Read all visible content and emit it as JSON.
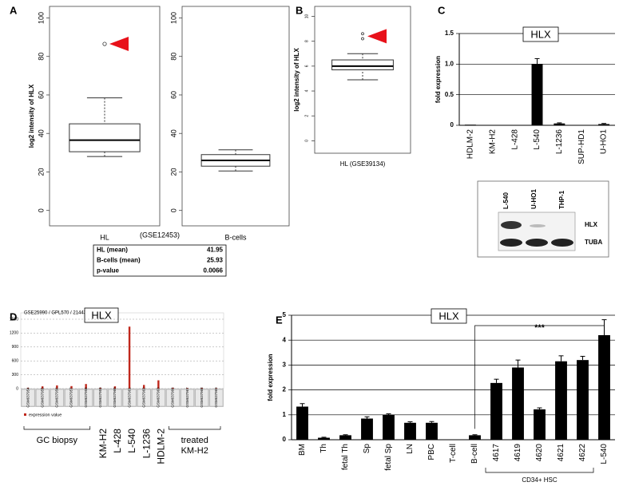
{
  "panel_labels": [
    "A",
    "B",
    "C",
    "D",
    "E"
  ],
  "panel_a_caption": "(GSE12453)",
  "table_a": {
    "rows": [
      [
        "HL (mean)",
        41.95
      ],
      [
        "B-cells (mean)",
        25.93
      ],
      [
        "p-value",
        0.0066
      ]
    ]
  },
  "blot": {
    "lanes": [
      "L-540",
      "U-HO1",
      "THP-1"
    ],
    "bands": [
      "HLX",
      "TUBA"
    ]
  },
  "chart_data": [
    {
      "type": "box",
      "ylabel": "log2 intensity of HLX",
      "categories": [
        "HL"
      ],
      "boxes": [
        {
          "whislo": 28,
          "q1": 30.5,
          "med": 36.5,
          "q3": 45,
          "whishi": 58.5,
          "fliers": [
            86.5
          ]
        }
      ],
      "ylim": [
        -8,
        106
      ],
      "yticks": [
        0,
        20,
        40,
        60,
        80,
        100
      ],
      "marker_color": "#e8111a"
    },
    {
      "type": "box",
      "categories": [
        "B-cells"
      ],
      "boxes": [
        {
          "whislo": 20.5,
          "q1": 23,
          "med": 26,
          "q3": 29,
          "whishi": 31.5,
          "fliers": []
        }
      ],
      "ylim": [
        -8,
        106
      ],
      "yticks": [
        0,
        20,
        40,
        60,
        80,
        100
      ]
    },
    {
      "type": "box",
      "ylabel": "log2 intensity of HLX",
      "categories": [
        "HL (GSE39134)"
      ],
      "boxes": [
        {
          "whislo": 4.9,
          "q1": 5.7,
          "med": 6.0,
          "q3": 6.5,
          "whishi": 7.0,
          "fliers": [
            8.2,
            8.6
          ]
        }
      ],
      "ylim": [
        -1,
        10.8
      ],
      "yticks": [
        0,
        2,
        4,
        6,
        8,
        10
      ],
      "marker_color": "#e8111a"
    },
    {
      "type": "bar",
      "title": "HLX",
      "ylabel": "fold expression",
      "categories": [
        "HDLM-2",
        "KM-H2",
        "L-428",
        "L-540",
        "L-1236",
        "SUP-HD1",
        "U-HO1"
      ],
      "label_colors": [
        "#000",
        "#000",
        "#000",
        "#d0201c",
        "#000",
        "#000",
        "#000"
      ],
      "values": [
        0.01,
        0,
        0,
        1.0,
        0.03,
        0,
        0.02
      ],
      "errors": [
        0,
        0,
        0,
        0.09,
        0.01,
        0,
        0.01
      ],
      "color": "#000",
      "ylim": [
        0,
        1.5
      ],
      "yticks": [
        0,
        0.5,
        {
          "value": 1,
          "label": "1.0"
        },
        1.5
      ],
      "grid": true
    },
    {
      "type": "column",
      "title": "HLX",
      "subtitle": "GSE25990 / GPL570 / 214438_at",
      "categories": [
        "GSM637954",
        "GSM637955",
        "GSM637956",
        "GSM637957",
        "GSM637958",
        "GSM637959",
        "GSM637960",
        "GSM637961",
        "GSM637962",
        "GSM637963",
        "GSM637966",
        "GSM637967",
        "GSM637968",
        "GSM637969"
      ],
      "series": [
        {
          "name": "expression value",
          "color": "#c0281c",
          "values": [
            20,
            50,
            70,
            55,
            100,
            20,
            50,
            1340,
            80,
            180,
            20,
            15,
            15,
            10
          ]
        }
      ],
      "group_labels": [
        "GC biopsy",
        "KM-H2",
        "L-428",
        "L-540",
        "L-1236",
        "HDLM-2",
        "treated KM-H2"
      ],
      "group_label_colors": [
        "#000",
        "#000",
        "#000",
        "#d0201c",
        "#000",
        "#000",
        "#000"
      ],
      "ylim": [
        0,
        1500
      ],
      "yticks": [
        0,
        300,
        600,
        900,
        1200,
        1500
      ],
      "grid": true
    },
    {
      "type": "bar",
      "title": "HLX",
      "ylabel": "fold expression",
      "categories": [
        "BM",
        "Th",
        "fetal Th",
        "Sp",
        "fetal Sp",
        "LN",
        "PBC",
        "T-cell",
        "B-cell",
        "4617",
        "4619",
        "4620",
        "4621",
        "4622",
        "L-540"
      ],
      "label_colors": [
        "#000",
        "#000",
        "#000",
        "#000",
        "#000",
        "#000",
        "#000",
        "#000",
        "#000",
        "#000",
        "#000",
        "#000",
        "#000",
        "#000",
        "#d0201c"
      ],
      "values": [
        1.33,
        0.08,
        0.18,
        0.85,
        1.0,
        0.68,
        0.68,
        0.0,
        0.18,
        2.28,
        2.9,
        1.22,
        3.15,
        3.2,
        4.2
      ],
      "errors": [
        0.12,
        0.02,
        0.02,
        0.07,
        0.04,
        0.04,
        0.05,
        0,
        0.02,
        0.15,
        0.3,
        0.06,
        0.22,
        0.15,
        0.62
      ],
      "annotation": "***",
      "group_label": "CD34+ HSC",
      "color": "#000",
      "ylim": [
        0,
        5
      ],
      "yticks": [
        0,
        1,
        2,
        3,
        4,
        5
      ],
      "grid": true
    }
  ]
}
